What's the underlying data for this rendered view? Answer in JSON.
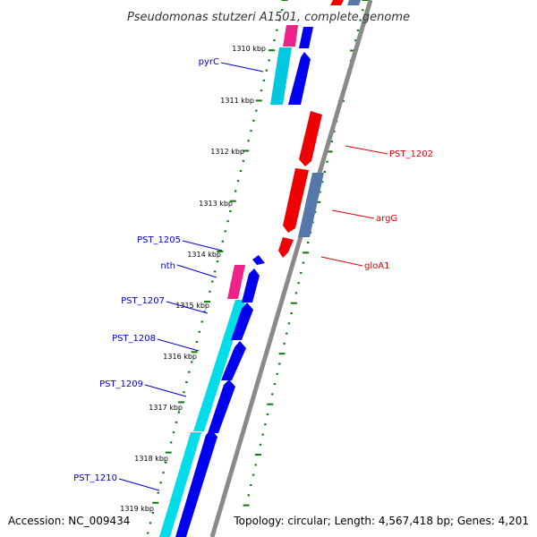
{
  "title": "Pseudomonas stutzeri A1501, complete genome",
  "accession": "Accession: NC_009434",
  "topology": "Topology: circular; Length: 4,567,418 bp; Genes: 4,201",
  "colors": {
    "backbone": "#888888",
    "tick": "#0a7a0a",
    "forward_gene": "#0000ee",
    "forward_cds": "#00c8e0",
    "forward_label": "#0000cc",
    "reverse_gene": "#ee0000",
    "reverse_cds": "#5577aa",
    "reverse_label": "#dd0000",
    "rna": "#ee2288"
  },
  "kbp_labels": [
    "1310 kbp",
    "1311 kbp",
    "1312 kbp",
    "1313 kbp",
    "1314 kbp",
    "1315 kbp",
    "1316 kbp",
    "1317 kbp",
    "1318 kbp",
    "1319 kbp"
  ],
  "forward_labels": [
    "pyrC",
    "PST_1205",
    "nth",
    "PST_1207",
    "PST_1208",
    "PST_1209",
    "PST_1210"
  ],
  "reverse_labels": [
    "PST_1202",
    "argG",
    "gloA1"
  ]
}
